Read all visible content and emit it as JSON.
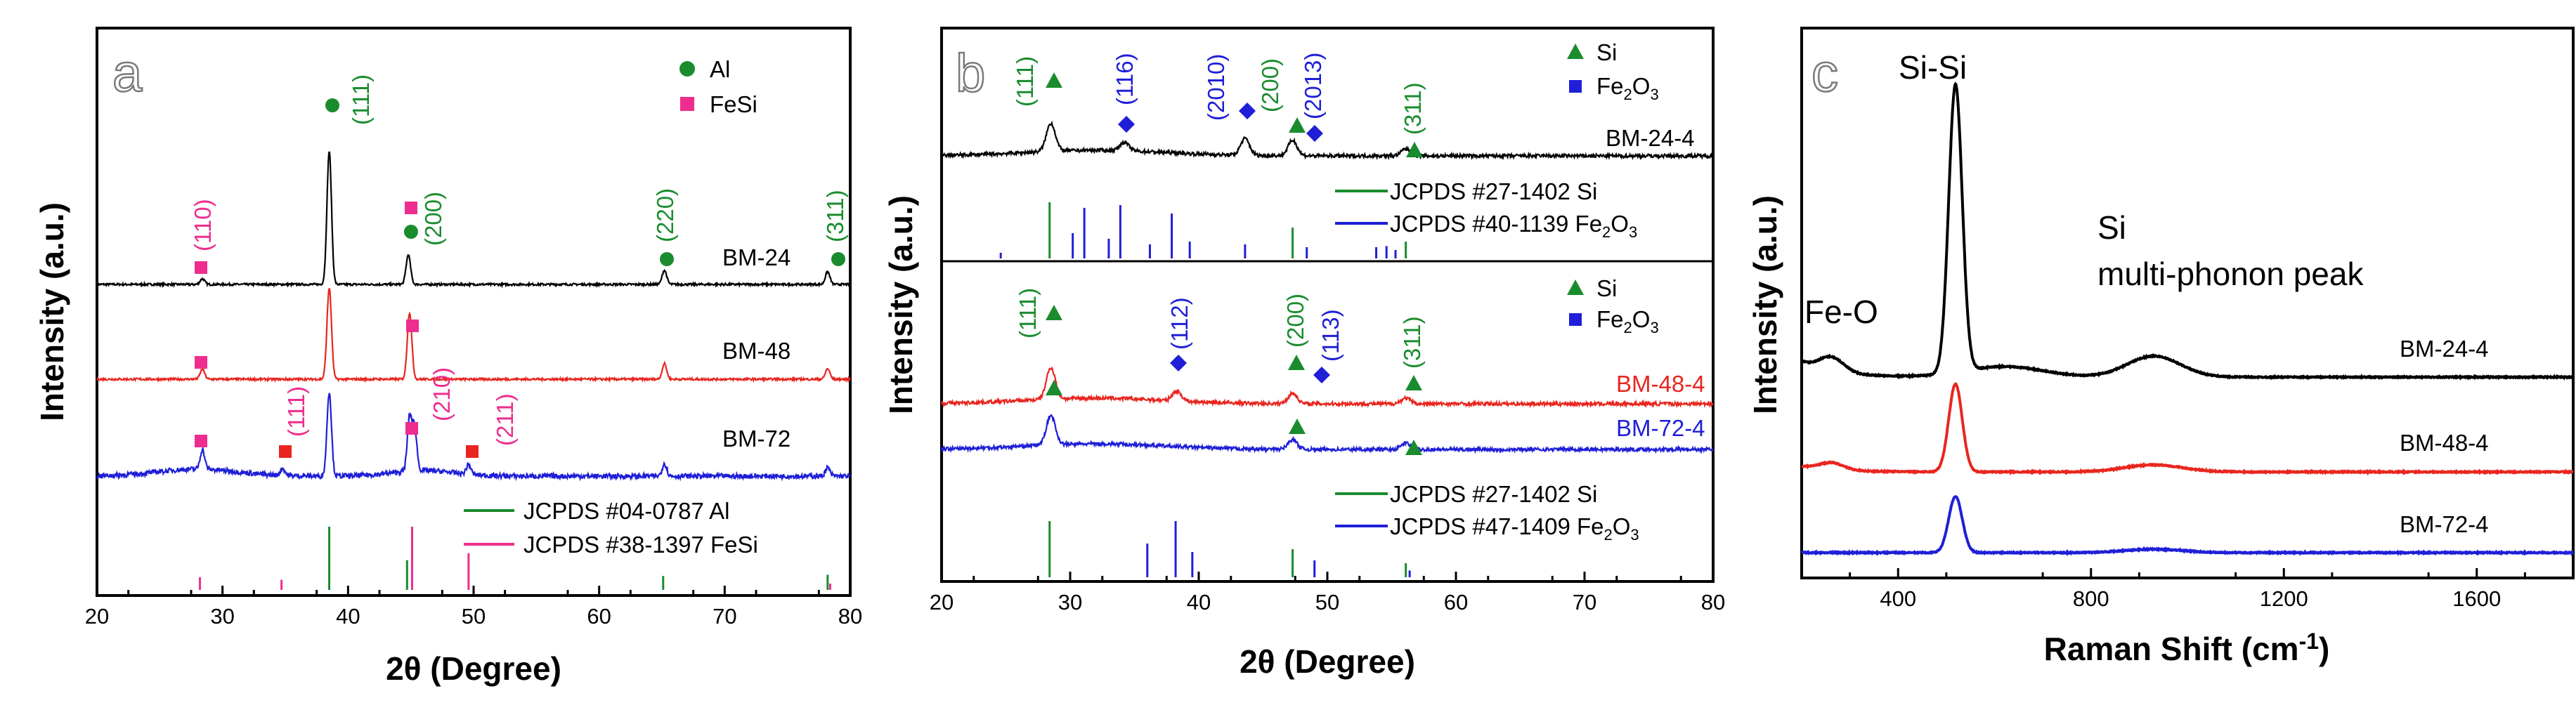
{
  "chart_data": [
    {
      "panel": "a",
      "type": "line",
      "xlabel": "2θ (Degree)",
      "ylabel": "Intensity (a.u.)",
      "xlim": [
        20,
        80
      ],
      "xticks": [
        "20",
        "30",
        "40",
        "50",
        "60",
        "70",
        "80"
      ],
      "series": [
        {
          "name": "BM-24",
          "color": "#000000",
          "peaks": [
            [
              28.4,
              8
            ],
            [
              38.5,
              190
            ],
            [
              44.8,
              42
            ],
            [
              65.2,
              20
            ],
            [
              78.2,
              18
            ]
          ]
        },
        {
          "name": "BM-48",
          "color": "#e8261f",
          "peaks": [
            [
              28.4,
              14
            ],
            [
              38.5,
              130
            ],
            [
              44.9,
              95
            ],
            [
              65.2,
              22
            ],
            [
              78.2,
              15
            ]
          ]
        },
        {
          "name": "BM-72",
          "color": "#1f1fd8",
          "peaks": [
            [
              28.4,
              28
            ],
            [
              34.8,
              10
            ],
            [
              38.5,
              120
            ],
            [
              44.9,
              75
            ],
            [
              45.3,
              60
            ],
            [
              49.6,
              14
            ],
            [
              65.2,
              18
            ],
            [
              78.2,
              12
            ]
          ]
        }
      ],
      "markers": [
        {
          "phase": "Al",
          "color": "#1a8c2e",
          "shape": "circle"
        },
        {
          "phase": "FeSi",
          "color": "#ee2d8e",
          "shape": "square"
        }
      ],
      "annotations": [
        {
          "text": "(111)",
          "color": "#1a8c2e"
        },
        {
          "text": "(200)",
          "color": "#1a8c2e"
        },
        {
          "text": "(220)",
          "color": "#1a8c2e"
        },
        {
          "text": "(311)",
          "color": "#1a8c2e"
        },
        {
          "text": "(110)",
          "color": "#ee2d8e"
        },
        {
          "text": "(111)",
          "color": "#ee2d8e"
        },
        {
          "text": "(210)",
          "color": "#ee2d8e"
        },
        {
          "text": "(211)",
          "color": "#ee2d8e"
        }
      ],
      "legend": [
        "Al",
        "FeSi"
      ],
      "references": [
        {
          "label": "JCPDS  #04-0787 Al",
          "color": "#1a8c2e",
          "lines": [
            [
              38.5,
              1.0
            ],
            [
              44.7,
              0.47
            ],
            [
              65.1,
              0.22
            ],
            [
              78.2,
              0.24
            ]
          ]
        },
        {
          "label": "JCPDS  #38-1397 FeSi",
          "color": "#ee2d8e",
          "lines": [
            [
              28.2,
              0.2
            ],
            [
              34.7,
              0.16
            ],
            [
              45.1,
              1.0
            ],
            [
              49.6,
              0.58
            ],
            [
              78.4,
              0.1
            ]
          ]
        }
      ]
    },
    {
      "panel": "b",
      "type": "line",
      "xlabel": "2θ (Degree)",
      "ylabel": "Intensity (a.u.)",
      "xlim": [
        20,
        80
      ],
      "xticks": [
        "20",
        "30",
        "40",
        "50",
        "60",
        "70",
        "80"
      ],
      "series": [
        {
          "name": "BM-24-4",
          "color": "#000000",
          "peaks": [
            [
              28.5,
              40
            ],
            [
              34.2,
              12
            ],
            [
              43.6,
              24
            ],
            [
              47.3,
              22
            ],
            [
              56.1,
              10
            ]
          ]
        },
        {
          "name": "BM-48-4",
          "color": "#e8261f",
          "peaks": [
            [
              28.5,
              45
            ],
            [
              38.3,
              14
            ],
            [
              47.3,
              15
            ],
            [
              56.1,
              8
            ]
          ]
        },
        {
          "name": "BM-72-4",
          "color": "#1f1fd8",
          "peaks": [
            [
              28.5,
              42
            ],
            [
              47.3,
              14
            ],
            [
              56.1,
              9
            ]
          ]
        }
      ],
      "markers": [
        {
          "phase": "Si",
          "color": "#1a8c2e",
          "shape": "triangle"
        },
        {
          "phase": "Fe2O3",
          "color": "#1f1fd8",
          "shape": "diamond"
        }
      ],
      "annotations_top": [
        {
          "text": "(111)",
          "color": "#1a8c2e"
        },
        {
          "text": "(116)",
          "color": "#1f1fd8"
        },
        {
          "text": "(2010)",
          "color": "#1f1fd8"
        },
        {
          "text": "(200)",
          "color": "#1a8c2e"
        },
        {
          "text": "(2013)",
          "color": "#1f1fd8"
        },
        {
          "text": "(311)",
          "color": "#1a8c2e"
        }
      ],
      "annotations_bottom": [
        {
          "text": "(111)",
          "color": "#1a8c2e"
        },
        {
          "text": "(112)",
          "color": "#1f1fd8"
        },
        {
          "text": "(200)",
          "color": "#1a8c2e"
        },
        {
          "text": "(113)",
          "color": "#1f1fd8"
        },
        {
          "text": "(311)",
          "color": "#1a8c2e"
        }
      ],
      "legend": [
        "Si",
        "Fe",
        "2",
        "O",
        "3"
      ],
      "references_top": [
        {
          "label": "JCPDS  #27-1402 Si",
          "color": "#1a8c2e",
          "lines": [
            [
              28.4,
              1.0
            ],
            [
              47.3,
              0.55
            ],
            [
              56.1,
              0.3
            ]
          ]
        },
        {
          "label_main": "JCPDS  #40-1139 Fe",
          "label_sub1": "2",
          "label_mid": "O",
          "label_sub2": "3",
          "color": "#1f1fd8",
          "lines": [
            [
              24.6,
              0.1
            ],
            [
              30.2,
              0.45
            ],
            [
              31.1,
              0.9
            ],
            [
              33.0,
              0.35
            ],
            [
              33.9,
              0.95
            ],
            [
              36.2,
              0.25
            ],
            [
              37.9,
              0.8
            ],
            [
              39.3,
              0.3
            ],
            [
              43.6,
              0.25
            ],
            [
              48.4,
              0.2
            ],
            [
              53.8,
              0.2
            ],
            [
              54.6,
              0.22
            ],
            [
              55.3,
              0.15
            ]
          ]
        }
      ],
      "references_bottom": [
        {
          "label": "JCPDS  #27-1402 Si",
          "color": "#1a8c2e",
          "lines": [
            [
              28.4,
              1.0
            ],
            [
              47.3,
              0.5
            ],
            [
              56.1,
              0.25
            ]
          ]
        },
        {
          "label_main": "JCPDS  #47-1409 Fe",
          "label_sub1": "2",
          "label_mid": "O",
          "label_sub2": "3",
          "color": "#1f1fd8",
          "lines": [
            [
              36.0,
              0.6
            ],
            [
              38.2,
              1.0
            ],
            [
              39.5,
              0.45
            ],
            [
              49.0,
              0.3
            ],
            [
              56.4,
              0.12
            ]
          ]
        }
      ]
    },
    {
      "panel": "c",
      "type": "line",
      "xlabel": "Raman Shift (cm",
      "xlabel_sup": "-1",
      "xlabel_end": ")",
      "ylabel": "Intensity (a.u.)",
      "xlim": [
        200,
        1800
      ],
      "xticks": [
        "400",
        "800",
        "1200",
        "1600"
      ],
      "series": [
        {
          "name": "BM-24-4",
          "color": "#000000",
          "peaks": [
            [
              262,
              20,
              25
            ],
            [
              519,
              410,
              14
            ],
            [
              620,
              15,
              80
            ],
            [
              930,
              30,
              55
            ]
          ]
        },
        {
          "name": "BM-48-4",
          "color": "#e8261f",
          "peaks": [
            [
              262,
              10,
              25
            ],
            [
              519,
              125,
              14
            ],
            [
              930,
              10,
              60
            ]
          ]
        },
        {
          "name": "BM-72-4",
          "color": "#1f1fd8",
          "peaks": [
            [
              519,
              80,
              14
            ],
            [
              930,
              5,
              60
            ]
          ]
        }
      ],
      "annotations": [
        "Fe-O",
        "Si-Si",
        "Si",
        "multi-phonon peak"
      ]
    }
  ]
}
